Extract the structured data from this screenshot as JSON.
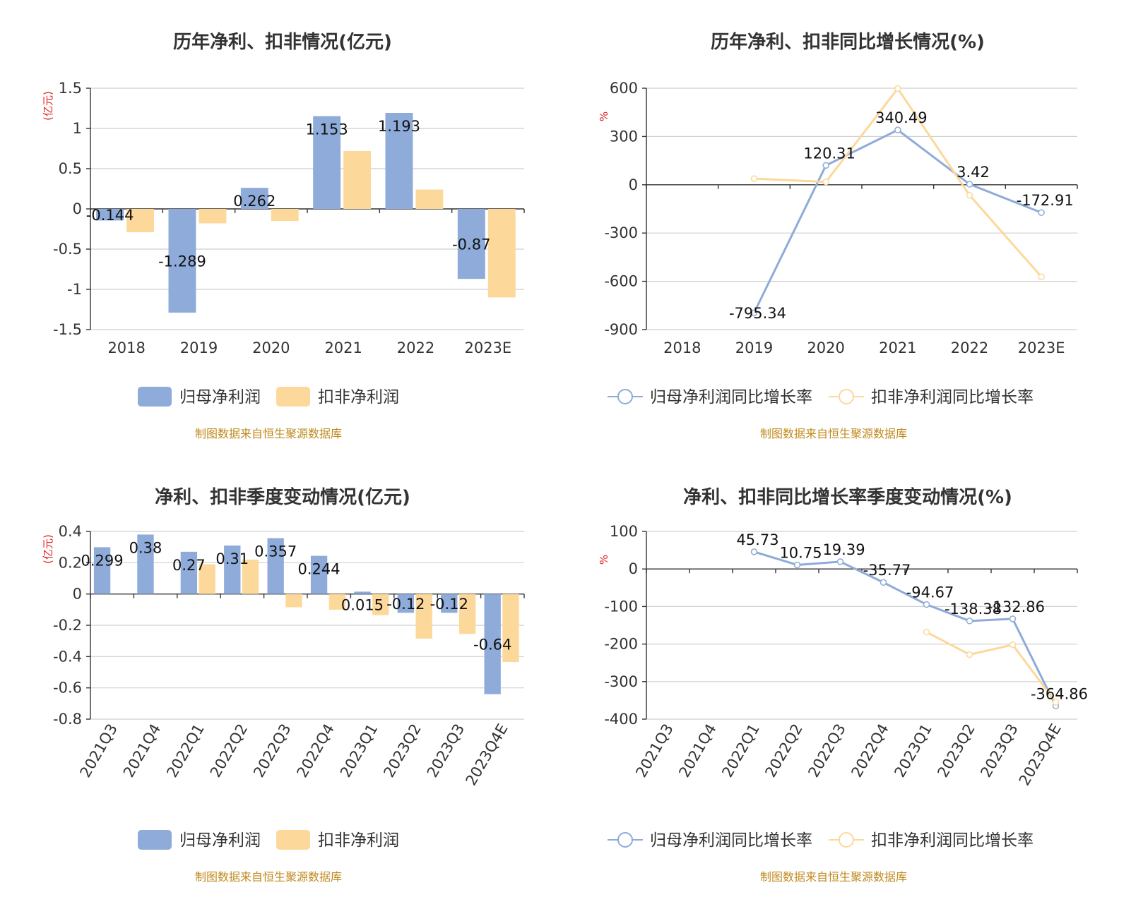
{
  "colors": {
    "blue": "#8eabd9",
    "orange": "#fdd89b",
    "blue_line": "#8eabd9",
    "orange_line": "#fdd89b"
  },
  "source_note": "制图数据来自恒生聚源数据库",
  "chart_data": [
    {
      "type": "bar",
      "title": "历年净利、扣非情况(亿元)",
      "ylabel": "(亿元)",
      "categories": [
        "2018",
        "2019",
        "2020",
        "2021",
        "2022",
        "2023E"
      ],
      "ylim": [
        -1.5,
        1.5
      ],
      "yticks": [
        1.5,
        1,
        0.5,
        0,
        -0.5,
        -1,
        -1.5
      ],
      "yticklabels": [
        "1.5",
        "1",
        "0.5",
        "0",
        "-0.5",
        "-1",
        "-1.5"
      ],
      "series": [
        {
          "name": "归母净利润",
          "values": [
            -0.144,
            -1.289,
            0.262,
            1.153,
            1.193,
            -0.87
          ],
          "labels": [
            "-0.144",
            "-1.289",
            "0.262",
            "1.153",
            "1.193",
            "-0.87"
          ]
        },
        {
          "name": "扣非净利润",
          "values": [
            -0.29,
            -0.18,
            -0.15,
            0.72,
            0.24,
            -1.1
          ]
        }
      ],
      "legend": "bottom-center",
      "grid": true
    },
    {
      "type": "line",
      "title": "历年净利、扣非同比增长情况(%)",
      "ylabel": "%",
      "categories": [
        "2018",
        "2019",
        "2020",
        "2021",
        "2022",
        "2023E"
      ],
      "ylim": [
        -900,
        600
      ],
      "yticks": [
        600,
        300,
        0,
        -300,
        -600,
        -900
      ],
      "yticklabels": [
        "600",
        "300",
        "0",
        "-300",
        "-600",
        "-900"
      ],
      "series": [
        {
          "name": "归母净利润同比增长率",
          "values": [
            null,
            -795.34,
            120.31,
            340.49,
            3.42,
            -172.91
          ],
          "labels": [
            null,
            "-795.34",
            "120.31",
            "340.49",
            "3.42",
            "-172.91"
          ]
        },
        {
          "name": "扣非净利润同比增长率",
          "values": [
            null,
            38,
            18,
            598,
            -65,
            -572
          ]
        }
      ],
      "legend": "bottom-center",
      "grid": true
    },
    {
      "type": "bar",
      "title": "净利、扣非季度变动情况(亿元)",
      "ylabel": "(亿元)",
      "categories": [
        "2021Q3",
        "2021Q4",
        "2022Q1",
        "2022Q2",
        "2022Q3",
        "2022Q4",
        "2023Q1",
        "2023Q2",
        "2023Q3",
        "2023Q4E"
      ],
      "ylim": [
        -0.8,
        0.4
      ],
      "yticks": [
        0.4,
        0.2,
        0,
        -0.2,
        -0.4,
        -0.6,
        -0.8
      ],
      "yticklabels": [
        "0.4",
        "0.2",
        "0",
        "-0.2",
        "-0.4",
        "-0.6",
        "-0.8"
      ],
      "series": [
        {
          "name": "归母净利润",
          "values": [
            0.299,
            0.38,
            0.27,
            0.31,
            0.357,
            0.244,
            0.015,
            -0.12,
            -0.12,
            -0.64
          ],
          "labels": [
            "0.299",
            "0.38",
            "0.27",
            "0.31",
            "0.357",
            "0.244",
            "0.015",
            "-0.12",
            "-0.12",
            "-0.64"
          ]
        },
        {
          "name": "扣非净利润",
          "values": [
            null,
            null,
            0.19,
            0.22,
            -0.085,
            -0.1,
            -0.135,
            -0.285,
            -0.255,
            -0.435
          ]
        }
      ],
      "legend": "bottom-center",
      "grid": true
    },
    {
      "type": "line",
      "title": "净利、扣非同比增长率季度变动情况(%)",
      "ylabel": "%",
      "categories": [
        "2021Q3",
        "2021Q4",
        "2022Q1",
        "2022Q2",
        "2022Q3",
        "2022Q4",
        "2023Q1",
        "2023Q2",
        "2023Q3",
        "2023Q4E"
      ],
      "ylim": [
        -400,
        100
      ],
      "yticks": [
        100,
        0,
        -100,
        -200,
        -300,
        -400
      ],
      "yticklabels": [
        "100",
        "0",
        "-100",
        "-200",
        "-300",
        "-400"
      ],
      "series": [
        {
          "name": "归母净利润同比增长率",
          "values": [
            null,
            null,
            45.73,
            10.75,
            19.39,
            -35.77,
            -94.67,
            -138.38,
            -132.86,
            -364.86
          ],
          "labels": [
            null,
            null,
            "45.73",
            "10.75",
            "19.39",
            "-35.77",
            "-94.67",
            "-138.38",
            "-132.86",
            "-364.86"
          ]
        },
        {
          "name": "扣非净利润同比增长率",
          "values": [
            null,
            null,
            null,
            null,
            null,
            null,
            -168,
            -228,
            -202,
            -355
          ]
        }
      ],
      "legend": "bottom-center",
      "grid": true
    }
  ]
}
